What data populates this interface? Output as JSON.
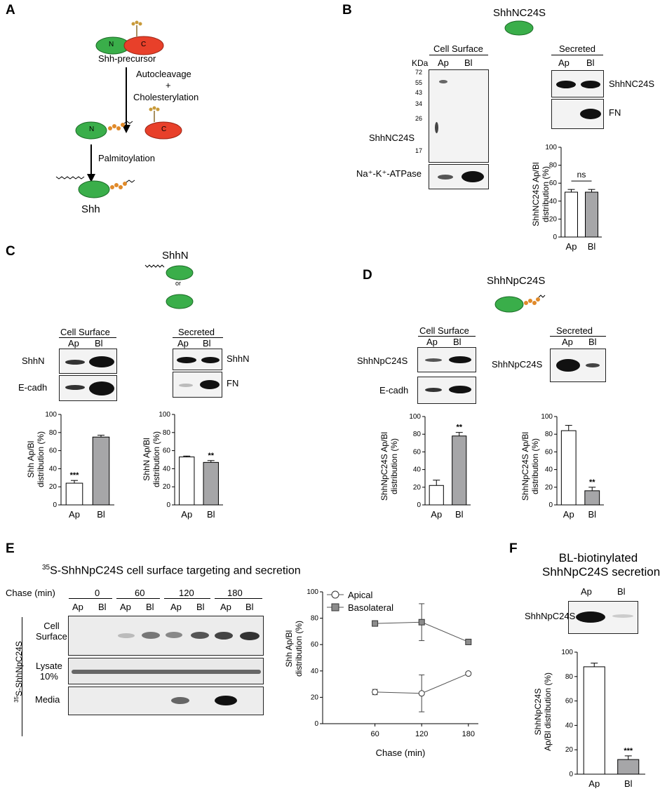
{
  "panelA": {
    "label": "A",
    "precursor_label": "Shh-precursor",
    "n_label": "N",
    "c_label": "C",
    "step1_line1": "Autocleavage",
    "step1_line2": "+",
    "step1_line3": "Cholesterylation",
    "step2": "Palmitoylation",
    "final": "Shh"
  },
  "panelB": {
    "label": "B",
    "title": "ShhNC24S",
    "cell_surface": "Cell Surface",
    "secreted": "Secreted",
    "kda": "KDa",
    "ap": "Ap",
    "bl": "Bl",
    "markers": [
      "72",
      "55",
      "43",
      "34",
      "26",
      "17"
    ],
    "row_label": "ShhNC24S",
    "atpase": "Na⁺-K⁺-ATPase",
    "sec_row1": "ShhNC24S",
    "sec_row2": "FN",
    "ylabel_line1": "ShhNC24S Ap/Bl",
    "ylabel_line2": "distribution (%)",
    "ns": "ns"
  },
  "panelC": {
    "label": "C",
    "title": "ShhN",
    "or": "or",
    "cell_surface": "Cell Surface",
    "secreted": "Secreted",
    "ap": "Ap",
    "bl": "Bl",
    "row1": "ShhN",
    "row2": "E-cadh",
    "sec_row1": "ShhN",
    "sec_row2": "FN",
    "ylabel1_line1": "Shh Ap/Bl",
    "ylabel1_line2": "distribution (%)",
    "ylabel2_line1": "ShhN Ap/Bl",
    "ylabel2_line2": "distribution (%)"
  },
  "panelD": {
    "label": "D",
    "title": "ShhNpC24S",
    "cell_surface": "Cell Surface",
    "secreted": "Secreted",
    "ap": "Ap",
    "bl": "Bl",
    "row1": "ShhNpC24S",
    "row2": "E-cadh",
    "sec_row1": "ShhNpC24S",
    "ylabel1_line1": "ShhNpC24S Ap/Bl",
    "ylabel1_line2": "distribution (%)",
    "ylabel2_line1": "ShhNpC24S Ap/Bl",
    "ylabel2_line2": "distribution (%)"
  },
  "panelE": {
    "label": "E",
    "title_sup": "35",
    "title_rest": "S-ShhNpC24S cell surface targeting and secretion",
    "chase_label": "Chase (min)",
    "chase_times": [
      "0",
      "60",
      "120",
      "180"
    ],
    "ap": "Ap",
    "bl": "Bl",
    "side_sup": "35",
    "side_rest": "S-ShhNpC24S",
    "row1_line1": "Cell",
    "row1_line2": "Surface",
    "row2_line1": "Lysate",
    "row2_line2": "10%",
    "row3": "Media",
    "legend_apical": "Apical",
    "legend_basolateral": "Basolateral",
    "ylabel_line1": "Shh Ap/Bl",
    "ylabel_line2": "distribution (%)",
    "xlabel": "Chase (min)"
  },
  "panelF": {
    "label": "F",
    "title_line1": "BL-biotinylated",
    "title_line2": "ShhNpC24S secretion",
    "ap": "Ap",
    "bl": "Bl",
    "row1": "ShhNpC24S",
    "ylabel_line1": "ShhNpC24S",
    "ylabel_line2": "Ap/Bl distribution (%)"
  },
  "chart_data": [
    {
      "id": "B",
      "type": "bar",
      "categories": [
        "Ap",
        "Bl"
      ],
      "values": [
        50,
        50
      ],
      "errors": [
        3,
        3
      ],
      "colors": [
        "#ffffff",
        "#a6a6a8"
      ],
      "ylim": [
        0,
        100
      ],
      "yticks": [
        0,
        20,
        40,
        60,
        80,
        100
      ],
      "annotations": [
        {
          "text": "ns",
          "between": [
            "Ap",
            "Bl"
          ]
        }
      ]
    },
    {
      "id": "C1",
      "type": "bar",
      "categories": [
        "Ap",
        "Bl"
      ],
      "values": [
        24,
        75
      ],
      "errors": [
        3,
        2
      ],
      "colors": [
        "#ffffff",
        "#a6a6a8"
      ],
      "ylim": [
        0,
        100
      ],
      "yticks": [
        0,
        20,
        40,
        60,
        80,
        100
      ],
      "annotations": [
        {
          "text": "***",
          "on": "Ap"
        }
      ]
    },
    {
      "id": "C2",
      "type": "bar",
      "categories": [
        "Ap",
        "Bl"
      ],
      "values": [
        53,
        47
      ],
      "errors": [
        1,
        2
      ],
      "colors": [
        "#ffffff",
        "#a6a6a8"
      ],
      "ylim": [
        0,
        100
      ],
      "yticks": [
        0,
        20,
        40,
        60,
        80,
        100
      ],
      "annotations": [
        {
          "text": "**",
          "on": "Bl"
        }
      ]
    },
    {
      "id": "D1",
      "type": "bar",
      "categories": [
        "Ap",
        "Bl"
      ],
      "values": [
        22,
        78
      ],
      "errors": [
        6,
        4
      ],
      "colors": [
        "#ffffff",
        "#a6a6a8"
      ],
      "ylim": [
        0,
        100
      ],
      "yticks": [
        0,
        20,
        40,
        60,
        80,
        100
      ],
      "annotations": [
        {
          "text": "**",
          "on": "Bl"
        }
      ]
    },
    {
      "id": "D2",
      "type": "bar",
      "categories": [
        "Ap",
        "Bl"
      ],
      "values": [
        84,
        16
      ],
      "errors": [
        6,
        4
      ],
      "colors": [
        "#ffffff",
        "#a6a6a8"
      ],
      "ylim": [
        0,
        100
      ],
      "yticks": [
        0,
        20,
        40,
        60,
        80,
        100
      ],
      "annotations": [
        {
          "text": "**",
          "on": "Bl"
        }
      ]
    },
    {
      "id": "E",
      "type": "line",
      "x": [
        60,
        120,
        180
      ],
      "xticks": [
        60,
        120,
        180
      ],
      "ylim": [
        0,
        100
      ],
      "yticks": [
        0,
        20,
        40,
        60,
        80,
        100
      ],
      "xlabel": "Chase (min)",
      "series": [
        {
          "name": "Apical",
          "values": [
            24,
            23,
            38
          ],
          "errors": [
            2,
            14,
            1
          ],
          "marker": "circle",
          "fill": "#ffffff"
        },
        {
          "name": "Basolateral",
          "values": [
            76,
            77,
            62
          ],
          "errors": [
            2,
            14,
            1
          ],
          "marker": "square",
          "fill": "#8c8c8c"
        }
      ],
      "legend": "top-left"
    },
    {
      "id": "F",
      "type": "bar",
      "categories": [
        "Ap",
        "Bl"
      ],
      "values": [
        88,
        12
      ],
      "errors": [
        3,
        3
      ],
      "colors": [
        "#ffffff",
        "#a6a6a8"
      ],
      "ylim": [
        0,
        100
      ],
      "yticks": [
        0,
        20,
        40,
        60,
        80,
        100
      ],
      "annotations": [
        {
          "text": "***",
          "on": "Bl"
        }
      ]
    }
  ]
}
